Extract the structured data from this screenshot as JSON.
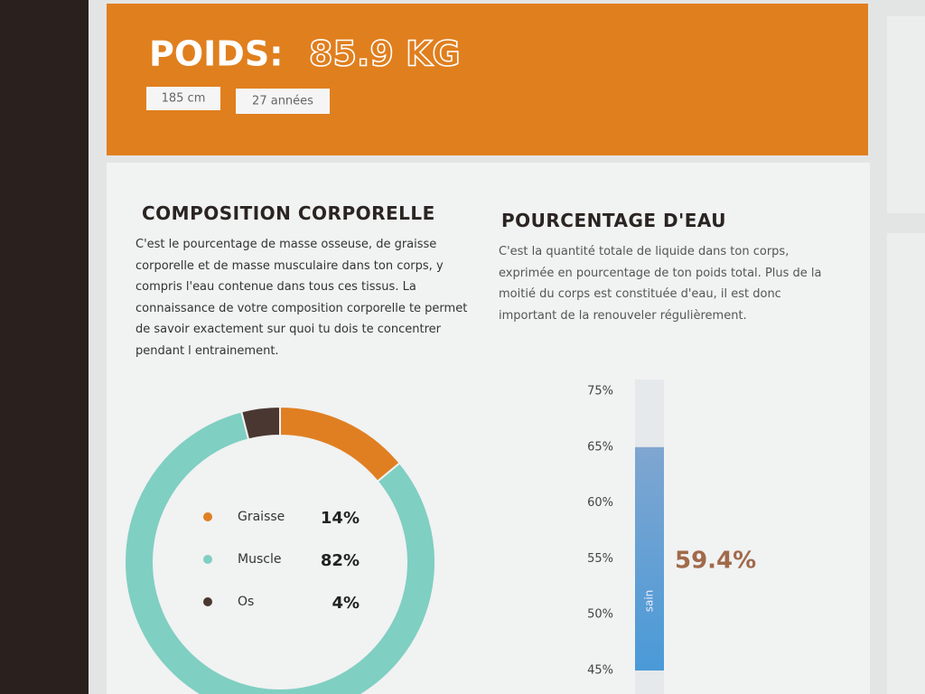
{
  "header": {
    "title": "POIDS:",
    "weight": "85.9 KG",
    "tags": [
      "185 cm",
      "27 années"
    ]
  },
  "composition": {
    "title": "COMPOSITION CORPORELLE",
    "text": "C'est le pourcentage de masse osseuse, de graisse corporelle et de masse musculaire dans ton corps, y compris l'eau contenue dans tous ces tissus. La connaissance de votre composition corporelle te permet de savoir exactement sur quoi tu dois te concentrer pendant l entrainement.",
    "chart_data": {
      "type": "donut",
      "categories": [
        "Graisse",
        "Muscle",
        "Os"
      ],
      "values": [
        14,
        82,
        4
      ],
      "value_labels": [
        "14%",
        "82%",
        "4%"
      ],
      "colors": [
        "#e07f22",
        "#7fcfc2",
        "#4a3731"
      ]
    }
  },
  "water": {
    "title": "POURCENTAGE D'EAU",
    "text": "C'est la quantité totale de liquide dans ton corps, exprimée en pourcentage de ton poids total. Plus de la moitié du corps est constituée d'eau, il est donc important de la renouveler régulièrement.",
    "chart_data": {
      "type": "range-bar",
      "yticks": [
        {
          "value": 75,
          "label": "75%"
        },
        {
          "value": 65,
          "label": "65%"
        },
        {
          "value": 60,
          "label": "60%"
        },
        {
          "value": 55,
          "label": "55%"
        },
        {
          "value": 50,
          "label": "50%"
        },
        {
          "value": 45,
          "label": "45%"
        }
      ],
      "range": [
        45,
        65
      ],
      "range_label": "sain",
      "value_label": "59.4%",
      "color": "#5a9fd8"
    }
  }
}
